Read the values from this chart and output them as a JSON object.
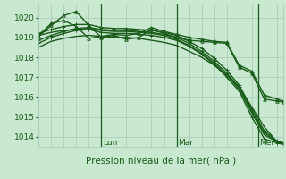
{
  "xlabel": "Pression niveau de la mer( hPa )",
  "bg_color": "#c8e8d0",
  "grid_color": "#a8c8b8",
  "line_color": "#1a5c1a",
  "ylim": [
    1013.5,
    1020.7
  ],
  "xlim": [
    0,
    78
  ],
  "yticks": [
    1014,
    1015,
    1016,
    1017,
    1018,
    1019,
    1020
  ],
  "day_labels": [
    [
      "Lun",
      20
    ],
    [
      "Mar",
      44
    ],
    [
      "Mer",
      70
    ]
  ],
  "day_lines": [
    20,
    44,
    70
  ],
  "series": [
    {
      "x": [
        0,
        4,
        8,
        12,
        16,
        20,
        24,
        28,
        32,
        36,
        40,
        44,
        48,
        52,
        56,
        60,
        64,
        68,
        72,
        76,
        78
      ],
      "y": [
        1018.5,
        1018.8,
        1018.95,
        1019.05,
        1019.1,
        1019.05,
        1019.0,
        1019.0,
        1018.95,
        1018.85,
        1018.75,
        1018.6,
        1018.3,
        1018.0,
        1017.6,
        1017.1,
        1016.5,
        1015.5,
        1014.5,
        1013.75,
        1013.65
      ],
      "marker": "none",
      "lw": 1.0
    },
    {
      "x": [
        0,
        4,
        8,
        12,
        16,
        20,
        24,
        28,
        32,
        36,
        40,
        44,
        48,
        52,
        56,
        60,
        64,
        68,
        72,
        76,
        78
      ],
      "y": [
        1019.1,
        1019.25,
        1019.35,
        1019.4,
        1019.45,
        1019.35,
        1019.3,
        1019.3,
        1019.25,
        1019.2,
        1019.1,
        1018.9,
        1018.6,
        1018.2,
        1017.7,
        1017.1,
        1016.4,
        1015.2,
        1014.1,
        1013.75,
        1013.65
      ],
      "marker": "none",
      "lw": 1.0
    },
    {
      "x": [
        0,
        4,
        8,
        12,
        16,
        20,
        24,
        28,
        32,
        36,
        40,
        44,
        48,
        52,
        56,
        60,
        64,
        68,
        72,
        76,
        78
      ],
      "y": [
        1018.7,
        1019.0,
        1019.2,
        1019.35,
        1019.4,
        1019.25,
        1019.2,
        1019.2,
        1019.15,
        1019.1,
        1019.0,
        1018.85,
        1018.55,
        1018.15,
        1017.65,
        1017.0,
        1016.3,
        1015.0,
        1013.9,
        1013.7,
        1013.62
      ],
      "marker": "+",
      "lw": 1.0,
      "ms": 3
    },
    {
      "x": [
        0,
        4,
        8,
        12,
        16,
        20,
        24,
        28,
        32,
        36,
        40,
        44,
        48,
        52,
        56,
        60,
        64,
        68,
        72,
        76,
        78
      ],
      "y": [
        1018.85,
        1019.1,
        1019.3,
        1019.45,
        1019.5,
        1019.4,
        1019.35,
        1019.35,
        1019.3,
        1019.25,
        1019.15,
        1019.0,
        1018.7,
        1018.3,
        1017.8,
        1017.2,
        1016.5,
        1015.3,
        1014.2,
        1013.75,
        1013.65
      ],
      "marker": "+",
      "lw": 1.0,
      "ms": 3
    },
    {
      "x": [
        0,
        4,
        8,
        12,
        16,
        20,
        24,
        28,
        32,
        36,
        40,
        44,
        48,
        52,
        56,
        60,
        64,
        68,
        72,
        76,
        78
      ],
      "y": [
        1019.2,
        1019.4,
        1019.55,
        1019.65,
        1019.65,
        1019.5,
        1019.45,
        1019.45,
        1019.4,
        1019.35,
        1019.25,
        1019.1,
        1018.8,
        1018.45,
        1017.95,
        1017.35,
        1016.6,
        1015.4,
        1014.3,
        1013.8,
        1013.7
      ],
      "marker": "+",
      "lw": 1.0,
      "ms": 3
    },
    {
      "x": [
        0,
        4,
        8,
        12,
        16,
        20,
        24,
        28,
        32,
        36,
        40,
        44,
        48,
        52,
        56,
        60,
        64,
        68,
        72,
        76,
        78
      ],
      "y": [
        1019.1,
        1019.7,
        1019.85,
        1019.55,
        1018.95,
        1019.05,
        1019.15,
        1019.1,
        1019.2,
        1019.5,
        1019.3,
        1019.15,
        1019.0,
        1018.9,
        1018.8,
        1018.75,
        1017.6,
        1017.3,
        1016.1,
        1015.9,
        1015.8
      ],
      "marker": "^",
      "lw": 1.0,
      "ms": 2.5,
      "mfc": "none"
    },
    {
      "x": [
        0,
        4,
        8,
        12,
        16,
        20,
        24,
        28,
        32,
        36,
        40,
        44,
        48,
        52,
        56,
        60,
        64,
        68,
        72,
        76,
        78
      ],
      "y": [
        1019.05,
        1019.6,
        1020.1,
        1020.3,
        1019.6,
        1019.0,
        1019.1,
        1018.9,
        1019.0,
        1019.4,
        1019.2,
        1019.0,
        1018.85,
        1018.8,
        1018.75,
        1018.7,
        1017.5,
        1017.2,
        1015.9,
        1015.8,
        1015.75
      ],
      "marker": "^",
      "lw": 1.0,
      "ms": 2.5,
      "mfc": "none"
    }
  ]
}
